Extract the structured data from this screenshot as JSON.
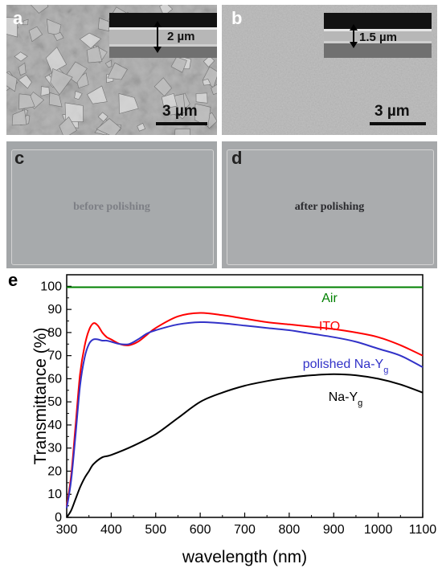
{
  "panels": {
    "a": {
      "label": "a",
      "thickness": "2 µm",
      "scale": "3 µm"
    },
    "b": {
      "label": "b",
      "thickness": "1.5 µm",
      "scale": "3 µm"
    },
    "c": {
      "label": "c",
      "caption": "before polishing"
    },
    "d": {
      "label": "d",
      "caption": "after polishing"
    }
  },
  "chart_data": {
    "panel_label": "e",
    "type": "line",
    "xlabel": "wavelength (nm)",
    "ylabel": "Transmittance (%)",
    "xlim": [
      300,
      1100
    ],
    "ylim": [
      0,
      105
    ],
    "x_ticks": [
      300,
      400,
      500,
      600,
      700,
      800,
      900,
      1000,
      1100
    ],
    "y_ticks": [
      0,
      10,
      20,
      30,
      40,
      50,
      60,
      70,
      80,
      90,
      100
    ],
    "grid": false,
    "series": [
      {
        "name": "Air",
        "color": "#008000",
        "x": [
          300,
          1100
        ],
        "y": [
          99.6,
          99.6
        ]
      },
      {
        "name": "ITO",
        "color": "#ff0000",
        "x": [
          300,
          310,
          320,
          330,
          340,
          350,
          360,
          370,
          380,
          390,
          400,
          420,
          440,
          460,
          480,
          500,
          550,
          600,
          650,
          700,
          750,
          800,
          850,
          900,
          950,
          1000,
          1050,
          1100
        ],
        "y": [
          5,
          18,
          40,
          62,
          74,
          81,
          84,
          83,
          80,
          78,
          77,
          75,
          74.5,
          76,
          79,
          82,
          87,
          88.5,
          87.5,
          86,
          84.5,
          83.5,
          82.5,
          81.5,
          80,
          78,
          74.5,
          70
        ]
      },
      {
        "name": "polished Na-Yg",
        "color": "#3232c8",
        "x": [
          300,
          310,
          320,
          330,
          340,
          350,
          360,
          370,
          380,
          390,
          400,
          420,
          440,
          460,
          480,
          500,
          550,
          600,
          650,
          700,
          750,
          800,
          850,
          900,
          950,
          1000,
          1050,
          1100
        ],
        "y": [
          4,
          16,
          36,
          57,
          69,
          75,
          77,
          77,
          76.5,
          76.5,
          76,
          75,
          75,
          77,
          79.5,
          81,
          83.5,
          84.5,
          84,
          83,
          82,
          81,
          79.5,
          78,
          76,
          73,
          70,
          65
        ]
      },
      {
        "name": "Na-Yg",
        "color": "#000000",
        "x": [
          300,
          310,
          320,
          330,
          340,
          350,
          360,
          380,
          400,
          450,
          500,
          550,
          600,
          650,
          700,
          750,
          800,
          850,
          900,
          950,
          1000,
          1050,
          1100
        ],
        "y": [
          0,
          3,
          8,
          13,
          17,
          20,
          23,
          26,
          27,
          31,
          36,
          43,
          50,
          54,
          57,
          59,
          60.5,
          61.5,
          62,
          61.5,
          60,
          57.5,
          54
        ]
      }
    ],
    "annotations": [
      {
        "text": "Air",
        "series": "Air"
      },
      {
        "text": "ITO",
        "series": "ITO"
      },
      {
        "text": "polished Na-Y",
        "subscript": "g",
        "series": "polished Na-Yg"
      },
      {
        "text": "Na-Y",
        "subscript": "g",
        "series": "Na-Yg"
      }
    ]
  }
}
